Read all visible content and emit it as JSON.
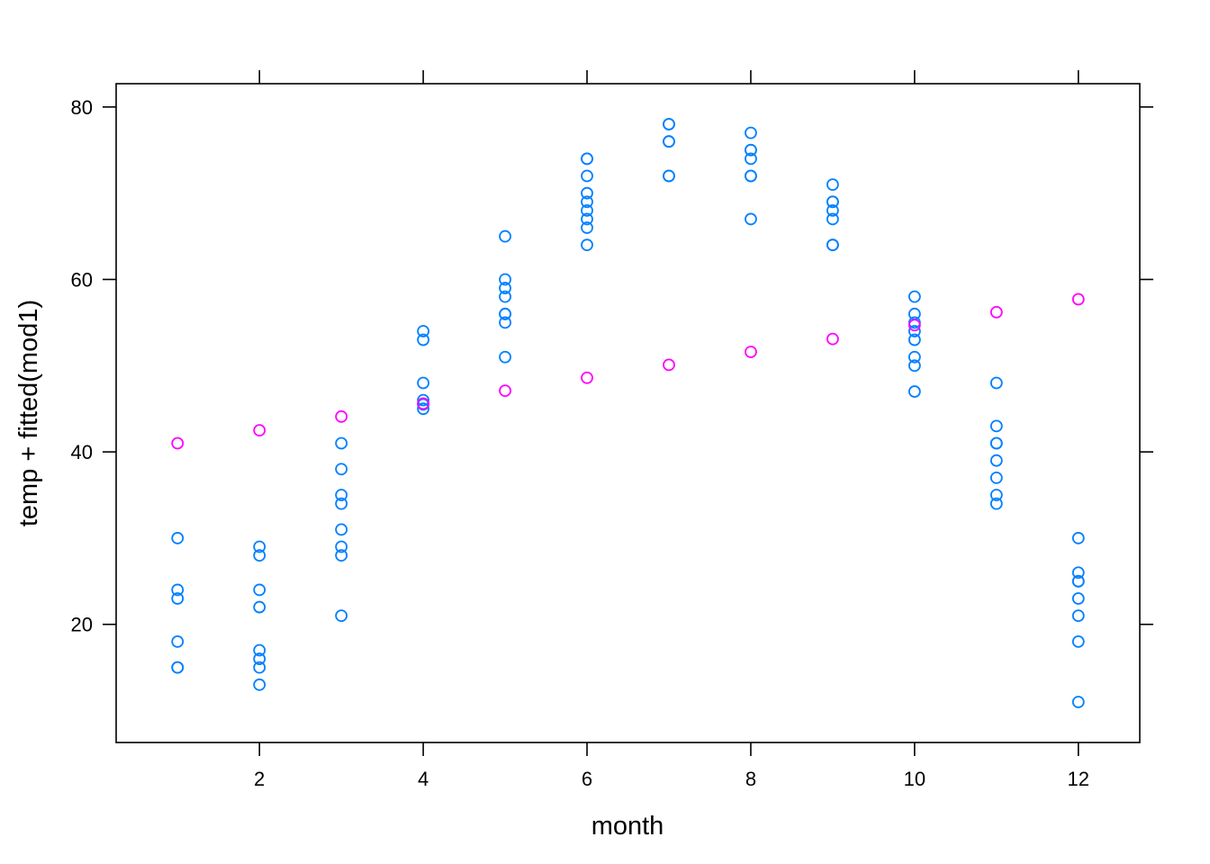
{
  "chart_data": {
    "type": "scatter",
    "title": "",
    "xlabel": "month",
    "ylabel": "temp + fitted(mod1)",
    "xlim": [
      0.25,
      12.75
    ],
    "ylim": [
      6.3,
      82.7
    ],
    "x_ticks": [
      2,
      4,
      6,
      8,
      10,
      12
    ],
    "y_ticks": [
      20,
      40,
      60,
      80
    ],
    "grid": false,
    "legend": "none",
    "colors": {
      "temp": "#0080ff",
      "fitted": "#ff00ff",
      "frame": "#000000"
    },
    "series": [
      {
        "key": "temp",
        "points": [
          [
            1,
            30
          ],
          [
            1,
            24
          ],
          [
            1,
            23
          ],
          [
            1,
            18
          ],
          [
            1,
            15
          ],
          [
            1,
            15
          ],
          [
            2,
            29
          ],
          [
            2,
            28
          ],
          [
            2,
            24
          ],
          [
            2,
            22
          ],
          [
            2,
            17
          ],
          [
            2,
            16
          ],
          [
            2,
            15
          ],
          [
            2,
            13
          ],
          [
            3,
            41
          ],
          [
            3,
            38
          ],
          [
            3,
            35
          ],
          [
            3,
            34
          ],
          [
            3,
            31
          ],
          [
            3,
            29
          ],
          [
            3,
            28
          ],
          [
            3,
            21
          ],
          [
            4,
            54
          ],
          [
            4,
            53
          ],
          [
            4,
            48
          ],
          [
            4,
            46
          ],
          [
            4,
            45.5
          ],
          [
            4,
            45
          ],
          [
            5,
            65
          ],
          [
            5,
            60
          ],
          [
            5,
            59
          ],
          [
            5,
            58
          ],
          [
            5,
            56
          ],
          [
            5,
            56
          ],
          [
            5,
            55
          ],
          [
            5,
            51
          ],
          [
            6,
            74
          ],
          [
            6,
            74
          ],
          [
            6,
            72
          ],
          [
            6,
            70
          ],
          [
            6,
            69
          ],
          [
            6,
            68
          ],
          [
            6,
            67
          ],
          [
            6,
            66
          ],
          [
            6,
            64
          ],
          [
            7,
            78
          ],
          [
            7,
            78
          ],
          [
            7,
            76
          ],
          [
            7,
            76
          ],
          [
            7,
            72
          ],
          [
            7,
            72
          ],
          [
            8,
            77
          ],
          [
            8,
            75
          ],
          [
            8,
            75
          ],
          [
            8,
            74
          ],
          [
            8,
            72
          ],
          [
            8,
            72
          ],
          [
            8,
            67
          ],
          [
            9,
            71
          ],
          [
            9,
            69
          ],
          [
            9,
            69
          ],
          [
            9,
            68
          ],
          [
            9,
            67
          ],
          [
            9,
            64
          ],
          [
            9,
            64
          ],
          [
            10,
            58
          ],
          [
            10,
            56
          ],
          [
            10,
            55
          ],
          [
            10,
            54
          ],
          [
            10,
            53
          ],
          [
            10,
            51
          ],
          [
            10,
            50
          ],
          [
            10,
            47
          ],
          [
            11,
            48
          ],
          [
            11,
            43
          ],
          [
            11,
            41
          ],
          [
            11,
            41
          ],
          [
            11,
            39
          ],
          [
            11,
            37
          ],
          [
            11,
            35
          ],
          [
            11,
            34
          ],
          [
            12,
            30
          ],
          [
            12,
            26
          ],
          [
            12,
            25
          ],
          [
            12,
            25
          ],
          [
            12,
            23
          ],
          [
            12,
            21
          ],
          [
            12,
            18
          ],
          [
            12,
            11
          ]
        ]
      },
      {
        "key": "fitted",
        "points": [
          [
            1,
            41.0
          ],
          [
            2,
            42.5
          ],
          [
            3,
            44.1
          ],
          [
            4,
            45.6
          ],
          [
            5,
            47.1
          ],
          [
            6,
            48.6
          ],
          [
            7,
            50.1
          ],
          [
            8,
            51.6
          ],
          [
            9,
            53.1
          ],
          [
            10,
            54.7
          ],
          [
            11,
            56.2
          ],
          [
            12,
            57.7
          ]
        ]
      }
    ]
  }
}
